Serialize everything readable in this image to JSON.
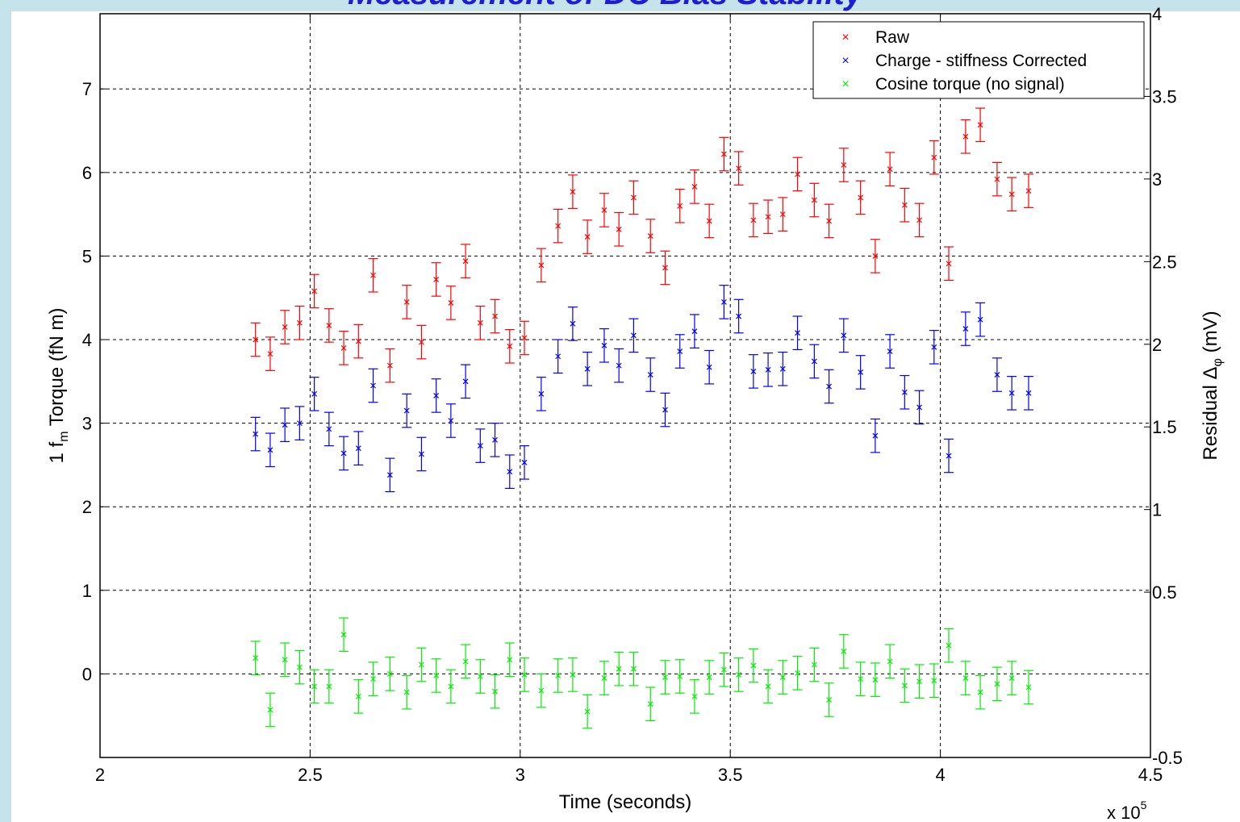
{
  "chart_data": {
    "type": "scatter",
    "title": "Measurement of DC Bias Stability",
    "xlabel": "Time (seconds)",
    "x_multiplier_label": "x 10",
    "x_multiplier_exp": "5",
    "ylabel_parts": {
      "a": "1 f",
      "sub": "m",
      "b": " Torque (fN m)"
    },
    "y2label_parts": {
      "a": "Residual Δ",
      "sub": "φ",
      "b": "  (mV)"
    },
    "xlim": [
      2.0,
      4.5
    ],
    "ylim": [
      -1.0,
      7.9
    ],
    "y2lim": [
      -0.5,
      4.0
    ],
    "grid": true,
    "legend_position": "top-right",
    "x_ticks": [
      2.0,
      2.5,
      3.0,
      3.5,
      4.0,
      4.5
    ],
    "x_tick_labels": [
      "2",
      "2.5",
      "3",
      "3.5",
      "4",
      "4.5"
    ],
    "y_ticks": [
      0,
      1,
      2,
      3,
      4,
      5,
      6,
      7
    ],
    "y_tick_labels": [
      "0",
      "1",
      "2",
      "3",
      "4",
      "5",
      "6",
      "7"
    ],
    "y2_ticks": [
      -0.5,
      0.5,
      1.0,
      1.5,
      2.0,
      2.5,
      3.0,
      3.5,
      4.0
    ],
    "y2_tick_labels": [
      "-0.5",
      "0.5",
      "1",
      "1.5",
      "2",
      "2.5",
      "3",
      "3.5",
      "4"
    ],
    "x": [
      2.37,
      2.405,
      2.44,
      2.475,
      2.51,
      2.545,
      2.58,
      2.615,
      2.65,
      2.69,
      2.73,
      2.765,
      2.8,
      2.835,
      2.87,
      2.905,
      2.94,
      2.975,
      3.01,
      3.05,
      3.09,
      3.125,
      3.16,
      3.2,
      3.235,
      3.27,
      3.31,
      3.345,
      3.38,
      3.415,
      3.45,
      3.485,
      3.52,
      3.555,
      3.59,
      3.625,
      3.66,
      3.7,
      3.735,
      3.77,
      3.81,
      3.845,
      3.88,
      3.915,
      3.95,
      3.985,
      4.02,
      4.06,
      4.095,
      4.135,
      4.17,
      4.21
    ],
    "series": [
      {
        "name": "Raw",
        "color": "#ff0000",
        "y": [
          4.0,
          3.83,
          4.15,
          4.2,
          4.58,
          4.17,
          3.9,
          3.98,
          4.77,
          3.69,
          4.45,
          3.97,
          4.72,
          4.44,
          4.94,
          4.2,
          4.28,
          3.92,
          4.02,
          4.89,
          5.36,
          5.77,
          5.23,
          5.55,
          5.32,
          5.7,
          5.24,
          4.86,
          5.6,
          5.83,
          5.42,
          6.22,
          6.05,
          5.43,
          5.47,
          5.5,
          5.98,
          5.67,
          5.42,
          6.09,
          5.7,
          5.0,
          6.04,
          5.61,
          5.43,
          6.18,
          4.91,
          6.43,
          6.57,
          5.92,
          5.74,
          5.78
        ],
        "err": 0.2
      },
      {
        "name": "Charge - stiffness Corrected",
        "color": "#0000ff",
        "y": [
          2.87,
          2.68,
          2.98,
          3.0,
          3.35,
          2.93,
          2.64,
          2.7,
          3.45,
          2.38,
          3.15,
          2.63,
          3.33,
          3.03,
          3.5,
          2.73,
          2.8,
          2.42,
          2.53,
          3.35,
          3.8,
          4.19,
          3.65,
          3.93,
          3.69,
          4.05,
          3.58,
          3.16,
          3.86,
          4.1,
          3.67,
          4.45,
          4.28,
          3.62,
          3.64,
          3.65,
          4.08,
          3.74,
          3.44,
          4.05,
          3.61,
          2.85,
          3.86,
          3.37,
          3.19,
          3.91,
          2.61,
          4.13,
          4.24,
          3.58,
          3.36,
          3.36
        ],
        "err": 0.2
      },
      {
        "name": "Cosine torque (no signal)",
        "color": "#00ee00",
        "y": [
          0.19,
          -0.43,
          0.17,
          0.08,
          -0.15,
          -0.15,
          0.47,
          -0.27,
          -0.06,
          0.0,
          -0.22,
          0.11,
          -0.02,
          -0.15,
          0.15,
          -0.03,
          -0.21,
          0.17,
          -0.01,
          -0.2,
          -0.02,
          -0.01,
          -0.45,
          -0.05,
          0.06,
          0.06,
          -0.36,
          -0.04,
          -0.03,
          -0.27,
          -0.04,
          0.05,
          -0.01,
          0.1,
          -0.15,
          -0.04,
          0.01,
          0.11,
          -0.31,
          0.27,
          -0.06,
          -0.07,
          0.15,
          -0.14,
          -0.09,
          -0.08,
          0.34,
          -0.05,
          -0.22,
          -0.12,
          -0.05,
          -0.16
        ],
        "err": 0.2
      }
    ]
  }
}
